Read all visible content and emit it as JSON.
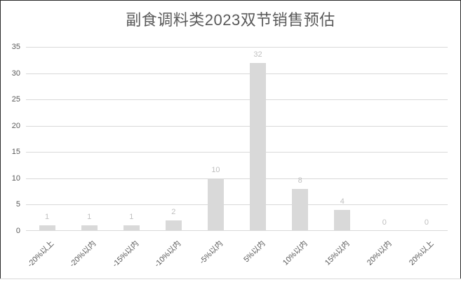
{
  "chart_data": {
    "type": "bar",
    "title": "副食调料类2023双节销售预估",
    "categories": [
      "-20%以上",
      "-20%以内",
      "-15%以内",
      "-10%以内",
      "-5%以内",
      "5%以内",
      "10%以内",
      "15%以内",
      "20%以内",
      "20%以上"
    ],
    "values": [
      1,
      1,
      1,
      2,
      10,
      32,
      8,
      4,
      0,
      0
    ],
    "xlabel": "",
    "ylabel": "",
    "ylim": [
      0,
      35
    ],
    "yticks": [
      0,
      5,
      10,
      15,
      20,
      25,
      30,
      35
    ],
    "grid": true,
    "legend_position": "none",
    "show_data_labels": true,
    "x_tick_rotation_deg": 45
  },
  "colors": {
    "background": "#ffffff",
    "title_text": "#595959",
    "axis_text": "#595959",
    "bar_fill": "#d9d9d9",
    "gridline": "#d9d9d9",
    "data_label_text": "#bfbfbf",
    "frame_border": "#2b2b2b",
    "bottom_line": "#d9d9d9"
  }
}
